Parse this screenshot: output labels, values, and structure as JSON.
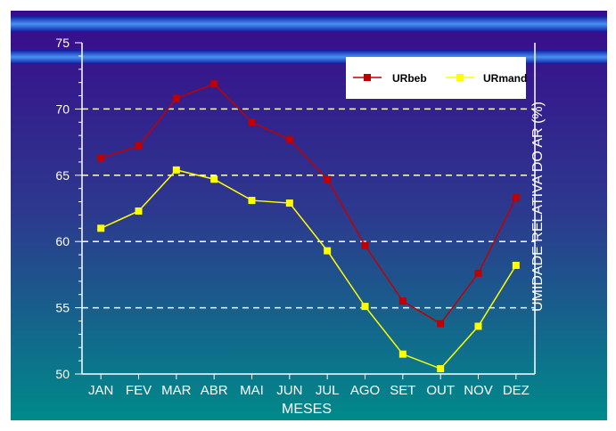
{
  "chart_data": {
    "type": "line",
    "categories": [
      "JAN",
      "FEV",
      "MAR",
      "ABR",
      "MAI",
      "JUN",
      "JUL",
      "AGO",
      "SET",
      "OUT",
      "NOV",
      "DEZ"
    ],
    "series": [
      {
        "name": "URbeb",
        "color": "#c00000",
        "values": [
          66.3,
          67.2,
          70.8,
          71.9,
          69.0,
          67.7,
          64.7,
          59.7,
          55.5,
          53.8,
          57.6,
          63.3
        ]
      },
      {
        "name": "URmand",
        "color": "#ffff00",
        "values": [
          61.0,
          62.3,
          65.4,
          64.7,
          63.1,
          62.9,
          59.3,
          55.1,
          51.5,
          50.4,
          53.6,
          58.2
        ]
      }
    ],
    "title": "",
    "xlabel": "MESES",
    "ylabel": "UMIDADE RELATIVA DO AR (%)",
    "ylim": [
      50,
      75
    ],
    "yticks": [
      50,
      55,
      60,
      65,
      70,
      75
    ],
    "grid": "dashed-horizontal",
    "legend": "top-right",
    "colors": {
      "background_top": "#3a0a8c",
      "background_bottom": "#008a8a",
      "axis": "#ffffff"
    }
  }
}
